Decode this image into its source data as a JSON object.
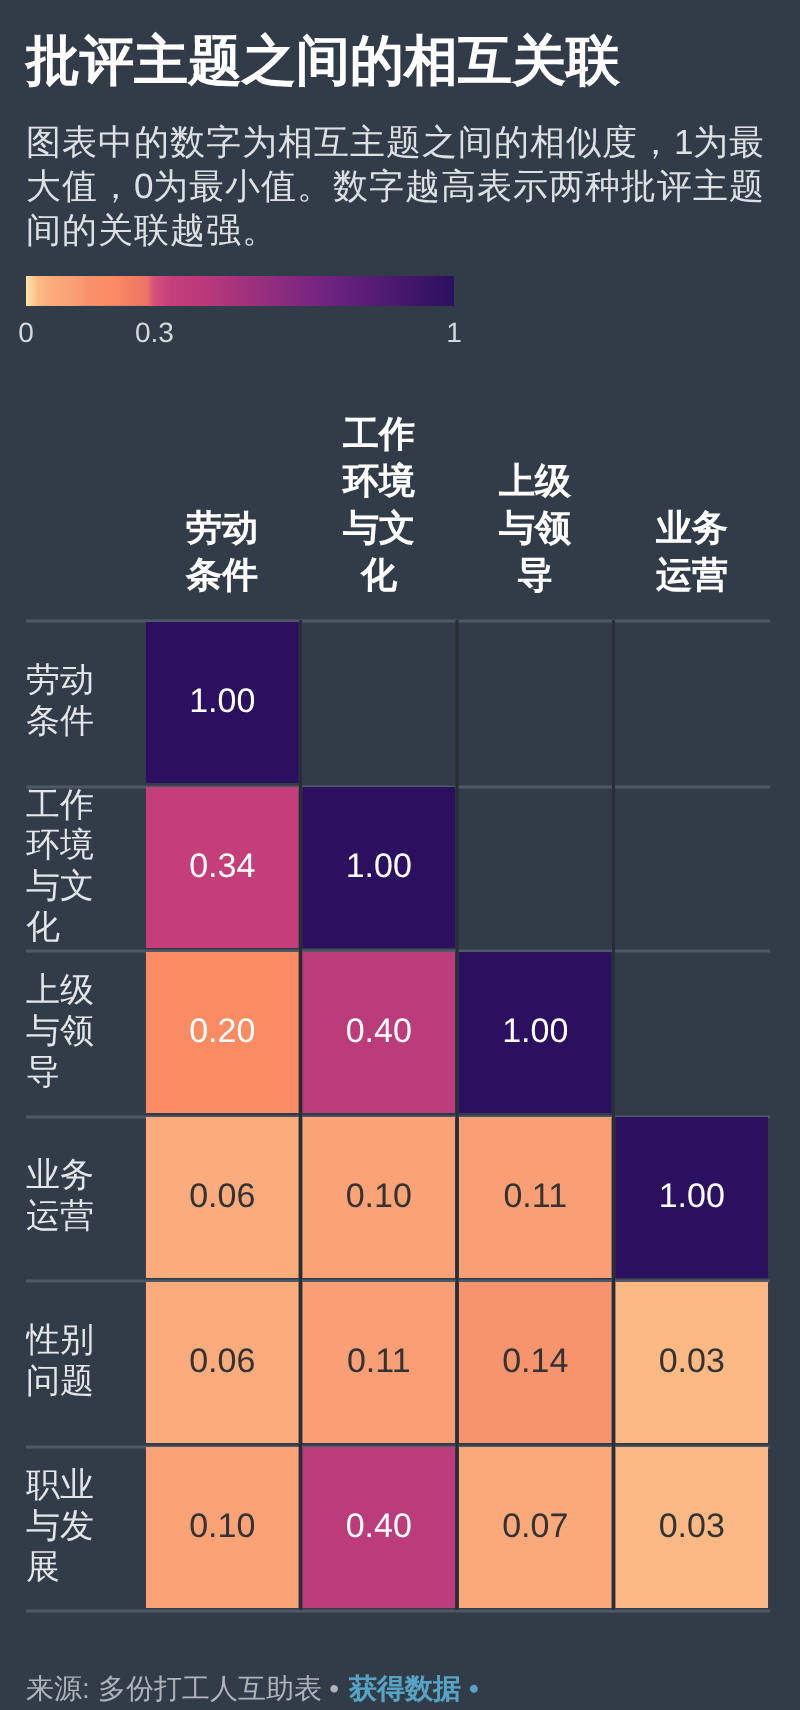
{
  "chart_data": {
    "type": "heatmap",
    "title": "批评主题之间的相互关联",
    "subtitle": "图表中的数字为相互主题之间的相似度，1为最大值，0为最小值。数字越高表示两种批评主题间的关联越强。",
    "categories": [
      "劳动条件",
      "工作环境与文化",
      "上级与领导",
      "业务运营"
    ],
    "y_categories": [
      "劳动条件",
      "工作环境与文化",
      "上级与领导",
      "业务运营",
      "性别问题",
      "职业与发展"
    ],
    "cells": [
      [
        1,
        null,
        null,
        null
      ],
      [
        0.34,
        1,
        null,
        null
      ],
      [
        0.2,
        0.4,
        1,
        null
      ],
      [
        0.06,
        0.1,
        0.11,
        1
      ],
      [
        0.06,
        0.11,
        0.14,
        0.03
      ],
      [
        0.1,
        0.4,
        0.07,
        0.03
      ]
    ],
    "cell_labels": [
      [
        "1.00",
        null,
        null,
        null
      ],
      [
        "0.34",
        "1.00",
        null,
        null
      ],
      [
        "0.20",
        "0.40",
        "1.00",
        null
      ],
      [
        "0.06",
        "0.10",
        "0.11",
        "1.00"
      ],
      [
        "0.06",
        "0.11",
        "0.14",
        "0.03"
      ],
      [
        "0.10",
        "0.40",
        "0.07",
        "0.03"
      ]
    ],
    "clim": [
      0,
      1
    ],
    "cticks": [
      0,
      0.3,
      1
    ],
    "grid": true,
    "annotations": [
      "来源: 多份打工人互助表 •",
      "获得数据 •"
    ]
  }
}
